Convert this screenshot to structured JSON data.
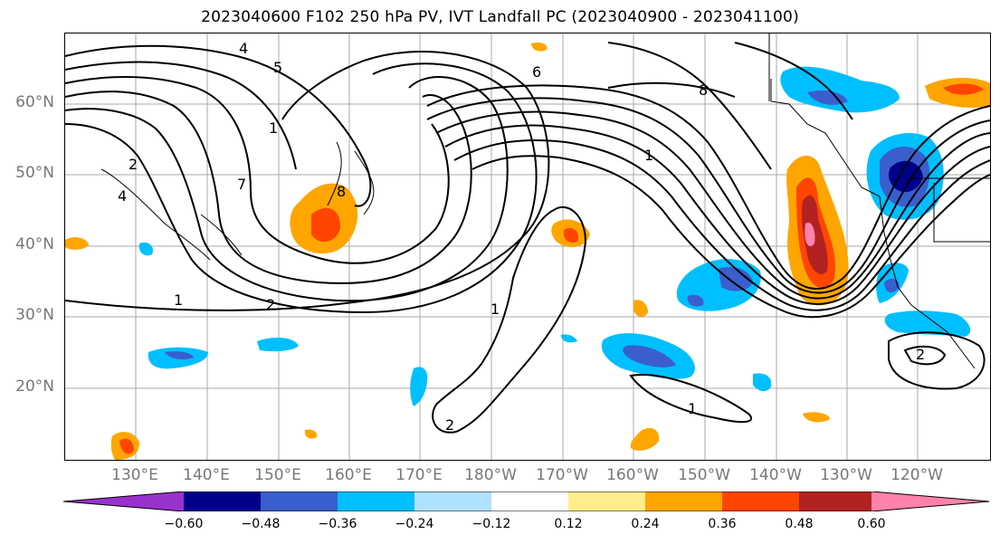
{
  "title": "2023040600 F102 250 hPa PV, IVT Landfall PC (2023040900 - 2023041100)",
  "lat_labels": [
    "60°N",
    "50°N",
    "40°N",
    "30°N",
    "20°N"
  ],
  "lon_labels": [
    "130°E",
    "140°E",
    "150°E",
    "160°E",
    "170°E",
    "180°W",
    "170°W",
    "160°W",
    "150°W",
    "140°W",
    "130°W",
    "120°W"
  ],
  "contour_labels": [
    "4",
    "5",
    "1",
    "8",
    "2",
    "1",
    "1",
    "2",
    "1",
    "2",
    "6",
    "8",
    "1",
    "2",
    "4",
    "7"
  ],
  "colorbar": {
    "colors": [
      "#9932cc",
      "#00008b",
      "#3a5fcd",
      "#00bfff",
      "#b0e2ff",
      "#ffffff",
      "#ffec8b",
      "#ffa500",
      "#ff4500",
      "#b22222",
      "#ff82ab"
    ],
    "tick_labels": [
      "−0.60",
      "−0.48",
      "−0.36",
      "−0.24",
      "−0.12",
      "0.12",
      "0.24",
      "0.36",
      "0.48",
      "0.60"
    ]
  }
}
